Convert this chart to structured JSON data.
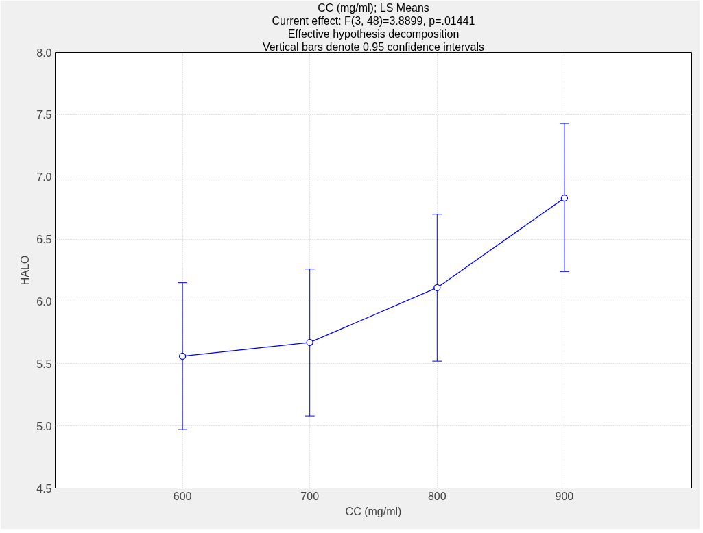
{
  "chart_data": {
    "type": "line",
    "title": "CC (mg/ml); LS Means",
    "annotations": [
      "Current effect: F(3, 48)=3.8899, p=.01441",
      "Effective hypothesis decomposition",
      "Vertical bars denote 0.95 confidence intervals"
    ],
    "xlabel": "CC (mg/ml)",
    "ylabel": "HALO",
    "x": [
      600,
      700,
      800,
      900
    ],
    "series": [
      {
        "color": "#0000ff",
        "values": [
          5.56,
          5.67,
          6.11,
          6.83
        ],
        "errors": [
          [
            4.97,
            6.15
          ],
          [
            5.08,
            6.26
          ],
          [
            5.52,
            6.7
          ],
          [
            6.24,
            7.43
          ]
        ]
      }
    ],
    "xlim": [
      500,
      1000
    ],
    "xticks": [
      600,
      700,
      800,
      900
    ],
    "ylim": [
      4.5,
      8.0
    ],
    "yticks": [
      {
        "value": 4.5,
        "label": "4.5"
      },
      {
        "value": 5.0,
        "label": "5.0"
      },
      {
        "value": 5.5,
        "label": "5.5"
      },
      {
        "value": 6.0,
        "label": "6.0"
      },
      {
        "value": 6.5,
        "label": "6.5"
      },
      {
        "value": 7.0,
        "label": "7.0"
      },
      {
        "value": 7.5,
        "label": "7.5"
      },
      {
        "value": 8.0,
        "label": "8.0"
      }
    ],
    "grid": true,
    "marker": "circle",
    "line_style": "solid"
  }
}
